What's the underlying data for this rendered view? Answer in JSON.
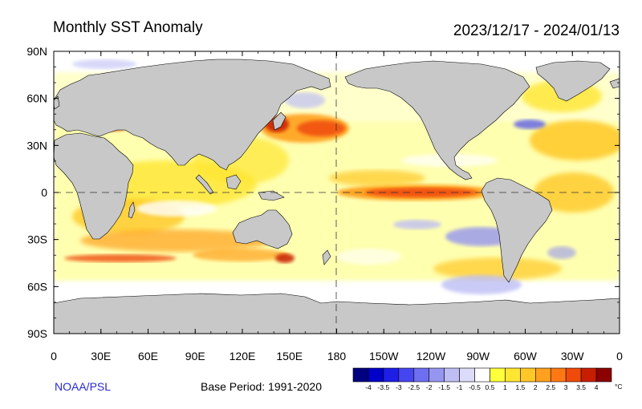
{
  "title": "Monthly SST Anomaly",
  "period": "2023/12/17 - 2024/01/13",
  "credit": "NOAA/PSL",
  "base_period": "Base Period: 1991-2020",
  "lat_labels": [
    "90N",
    "60N",
    "30N",
    "0",
    "30S",
    "60S",
    "90S"
  ],
  "lon_labels": [
    "0",
    "30E",
    "60E",
    "90E",
    "120E",
    "150E",
    "180",
    "150W",
    "120W",
    "90W",
    "60W",
    "30W",
    "0"
  ],
  "colorbar": {
    "unit": "°C",
    "tick_labels": [
      "-4",
      "-3.5",
      "-3",
      "-2.5",
      "-2",
      "-1.5",
      "-1",
      "-0.5",
      "0.5",
      "1",
      "1.5",
      "2",
      "2.5",
      "3",
      "3.5",
      "4"
    ],
    "colors": [
      "#000080",
      "#0000c8",
      "#1e1ee6",
      "#4646f0",
      "#6e6ef0",
      "#9696f0",
      "#bebef5",
      "#dcdcfa",
      "#ffffff",
      "#ffff3c",
      "#ffe632",
      "#ffc828",
      "#ffa01e",
      "#ff7814",
      "#f04b0a",
      "#c81e00",
      "#8c0000"
    ]
  },
  "colors": {
    "land": "#c8c8c8",
    "ocean": "#ffffff",
    "credit_text": "#2a2ad0"
  },
  "map_layers": [
    "ocean",
    "sst-anomaly-field",
    "land",
    "coastlines"
  ]
}
